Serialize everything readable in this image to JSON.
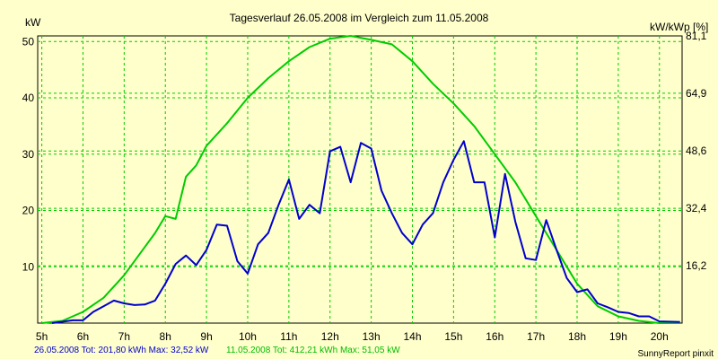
{
  "chart_data": {
    "type": "line",
    "title": "Tagesverlauf 26.05.2008 im Vergleich zum 11.05.2008",
    "ylabel_left": "kW",
    "ylabel_right": "kW/kWp [%]",
    "ylim": [
      0,
      51
    ],
    "grid": true,
    "x_ticks": [
      "5h",
      "6h",
      "7h",
      "8h",
      "9h",
      "10h",
      "11h",
      "12h",
      "13h",
      "14h",
      "15h",
      "16h",
      "17h",
      "18h",
      "19h",
      "20h"
    ],
    "y_ticks_left": [
      "10",
      "20",
      "30",
      "40",
      "50"
    ],
    "y_ticks_right": [
      "16,2",
      "32,4",
      "48,6",
      "64,9",
      "81,1"
    ],
    "series": [
      {
        "name": "26.05.2008",
        "color": "#0000cc",
        "points": [
          [
            5.25,
            0
          ],
          [
            5.75,
            0.5
          ],
          [
            6.0,
            0.5
          ],
          [
            6.25,
            2
          ],
          [
            6.5,
            3
          ],
          [
            6.75,
            4
          ],
          [
            7.0,
            3.5
          ],
          [
            7.25,
            3.2
          ],
          [
            7.5,
            3.3
          ],
          [
            7.75,
            4
          ],
          [
            8.0,
            7
          ],
          [
            8.25,
            10.5
          ],
          [
            8.5,
            12
          ],
          [
            8.75,
            10.3
          ],
          [
            9.0,
            13
          ],
          [
            9.25,
            17.5
          ],
          [
            9.5,
            17.3
          ],
          [
            9.75,
            11
          ],
          [
            10.0,
            8.8
          ],
          [
            10.25,
            14
          ],
          [
            10.5,
            16
          ],
          [
            10.75,
            21
          ],
          [
            11.0,
            25.5
          ],
          [
            11.25,
            18.5
          ],
          [
            11.5,
            21
          ],
          [
            11.75,
            19.5
          ],
          [
            12.0,
            30.5
          ],
          [
            12.25,
            31.3
          ],
          [
            12.5,
            25
          ],
          [
            12.75,
            32
          ],
          [
            13.0,
            31
          ],
          [
            13.25,
            23.5
          ],
          [
            13.5,
            19.5
          ],
          [
            13.75,
            16
          ],
          [
            14.0,
            14
          ],
          [
            14.25,
            17.5
          ],
          [
            14.5,
            19.5
          ],
          [
            14.75,
            25
          ],
          [
            15.0,
            29
          ],
          [
            15.25,
            32.3
          ],
          [
            15.5,
            25
          ],
          [
            15.75,
            25
          ],
          [
            16.0,
            15.2
          ],
          [
            16.25,
            26.5
          ],
          [
            16.5,
            18
          ],
          [
            16.75,
            11.5
          ],
          [
            17.0,
            11.2
          ],
          [
            17.25,
            18.3
          ],
          [
            17.5,
            13
          ],
          [
            17.75,
            8
          ],
          [
            18.0,
            5.5
          ],
          [
            18.25,
            6
          ],
          [
            18.5,
            3.5
          ],
          [
            18.75,
            2.8
          ],
          [
            19.0,
            2
          ],
          [
            19.25,
            1.8
          ],
          [
            19.5,
            1.2
          ],
          [
            19.75,
            1.2
          ],
          [
            20.0,
            0.3
          ],
          [
            20.5,
            0.2
          ]
        ]
      },
      {
        "name": "11.05.2008",
        "color": "#00cc00",
        "points": [
          [
            5.0,
            0
          ],
          [
            5.5,
            0.4
          ],
          [
            6.0,
            2
          ],
          [
            6.5,
            4.5
          ],
          [
            7.0,
            8.5
          ],
          [
            7.5,
            13.5
          ],
          [
            7.75,
            16
          ],
          [
            8.0,
            19
          ],
          [
            8.25,
            18.5
          ],
          [
            8.5,
            26
          ],
          [
            8.75,
            28
          ],
          [
            9.0,
            31.5
          ],
          [
            9.5,
            35.5
          ],
          [
            10.0,
            40
          ],
          [
            10.5,
            43.5
          ],
          [
            11.0,
            46.5
          ],
          [
            11.5,
            49
          ],
          [
            12.0,
            50.5
          ],
          [
            12.5,
            51
          ],
          [
            13.0,
            50.3
          ],
          [
            13.5,
            49.5
          ],
          [
            14.0,
            46.5
          ],
          [
            14.5,
            42.5
          ],
          [
            15.0,
            39
          ],
          [
            15.5,
            35
          ],
          [
            16.0,
            30
          ],
          [
            16.5,
            25
          ],
          [
            17.0,
            19
          ],
          [
            17.5,
            13
          ],
          [
            18.0,
            7
          ],
          [
            18.5,
            3
          ],
          [
            19.0,
            1.2
          ],
          [
            19.5,
            0.4
          ],
          [
            20.0,
            0
          ],
          [
            20.5,
            0
          ]
        ]
      }
    ]
  },
  "footer": {
    "series1_text": "26.05.2008 Tot: 201,80 kWh Max: 32,52 kW",
    "series2_text": "11.05.2008 Tot: 412,21 kWh Max: 51,05 kW",
    "brand": "SunnyReport pinxit"
  }
}
